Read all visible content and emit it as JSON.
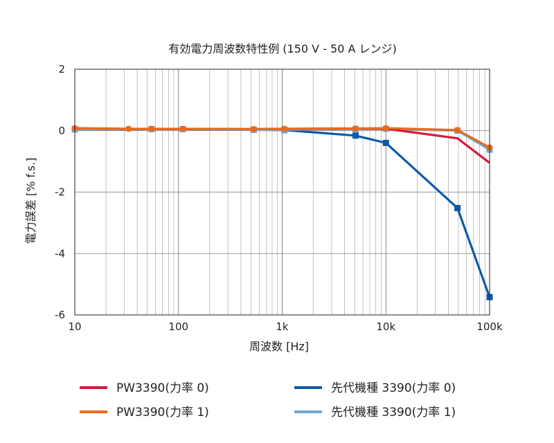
{
  "chart_data": {
    "type": "line",
    "title": "有効電力周波数特性例 (150 V - 50 A レンジ)",
    "xlabel": "周波数 [Hz]",
    "ylabel": "電力誤差 [% f.s.]",
    "x_scale": "log",
    "xlim": [
      10,
      100000
    ],
    "ylim": [
      -6,
      2
    ],
    "x_ticks": [
      10,
      100,
      1000,
      10000,
      100000
    ],
    "x_tick_labels": [
      "10",
      "100",
      "1k",
      "10k",
      "100k"
    ],
    "y_ticks": [
      2,
      0,
      -2,
      -4,
      -6
    ],
    "y_tick_labels": [
      "2",
      "0",
      "-2",
      "-4",
      "-6"
    ],
    "grid": true,
    "legend_position": "bottom",
    "series": [
      {
        "name": "PW3390(力率 0)",
        "color": "#d7193c",
        "marker": "none",
        "x": [
          10,
          33,
          55,
          110,
          530,
          1050,
          5100,
          10000,
          49000,
          100000
        ],
        "y": [
          0.08,
          0.06,
          0.06,
          0.06,
          0.05,
          0.06,
          0.07,
          0.06,
          -0.25,
          -1.05
        ]
      },
      {
        "name": "PW3390(力率 1)",
        "color": "#ec6a1c",
        "marker": "circle",
        "x": [
          10,
          33,
          55,
          110,
          530,
          1050,
          5100,
          10000,
          49000,
          100000
        ],
        "y": [
          0.08,
          0.06,
          0.06,
          0.06,
          0.05,
          0.06,
          0.07,
          0.08,
          0.02,
          -0.55
        ]
      },
      {
        "name": "先代機種 3390(力率 0)",
        "color": "#0b5aa8",
        "marker": "square",
        "x": [
          10,
          55,
          110,
          530,
          1050,
          5100,
          10000,
          49000,
          100000
        ],
        "y": [
          0.04,
          0.05,
          0.05,
          0.03,
          0.02,
          -0.16,
          -0.4,
          -2.52,
          -5.42
        ]
      },
      {
        "name": "先代機種 3390(力率 1)",
        "color": "#6fa8d8",
        "marker": "square",
        "x": [
          10,
          55,
          110,
          530,
          1050,
          5100,
          10000,
          49000,
          100000
        ],
        "y": [
          0.04,
          0.05,
          0.05,
          0.03,
          0.03,
          0.05,
          0.06,
          0.0,
          -0.62
        ]
      }
    ]
  }
}
